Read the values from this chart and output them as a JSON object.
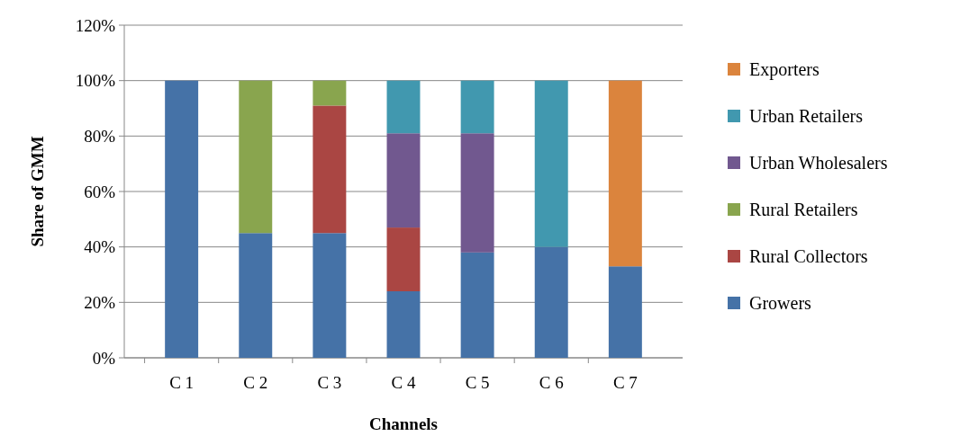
{
  "chart_data": {
    "type": "bar",
    "stacked": true,
    "xlabel": "Channels",
    "ylabel": "Share of GMM",
    "categories": [
      "C 1",
      "C 2",
      "C 3",
      "C 4",
      "C 5",
      "C 6",
      "C 7"
    ],
    "series": [
      {
        "name": "Growers",
        "color": "#4572a7",
        "values": [
          100,
          45,
          45,
          24,
          38,
          40,
          33
        ]
      },
      {
        "name": "Rural Collectors",
        "color": "#aa4643",
        "values": [
          0,
          0,
          46,
          23,
          0,
          0,
          0
        ]
      },
      {
        "name": "Rural Retailers",
        "color": "#89a54e",
        "values": [
          0,
          55,
          9,
          0,
          0,
          0,
          0
        ]
      },
      {
        "name": "Urban Wholesalers",
        "color": "#71588f",
        "values": [
          0,
          0,
          0,
          34,
          43,
          0,
          0
        ]
      },
      {
        "name": "Urban Retailers",
        "color": "#4198af",
        "values": [
          0,
          0,
          0,
          19,
          19,
          60,
          0
        ]
      },
      {
        "name": "Exporters",
        "color": "#db843d",
        "values": [
          0,
          0,
          0,
          0,
          0,
          0,
          67
        ]
      }
    ],
    "ylim": [
      0,
      120
    ],
    "yticks": [
      {
        "value": 0,
        "label": "0%"
      },
      {
        "value": 20,
        "label": "20%"
      },
      {
        "value": 40,
        "label": "40%"
      },
      {
        "value": 60,
        "label": "60%"
      },
      {
        "value": 80,
        "label": "80%"
      },
      {
        "value": 100,
        "label": "100%"
      },
      {
        "value": 120,
        "label": "120%"
      }
    ],
    "grid": "y",
    "legend": "right"
  }
}
